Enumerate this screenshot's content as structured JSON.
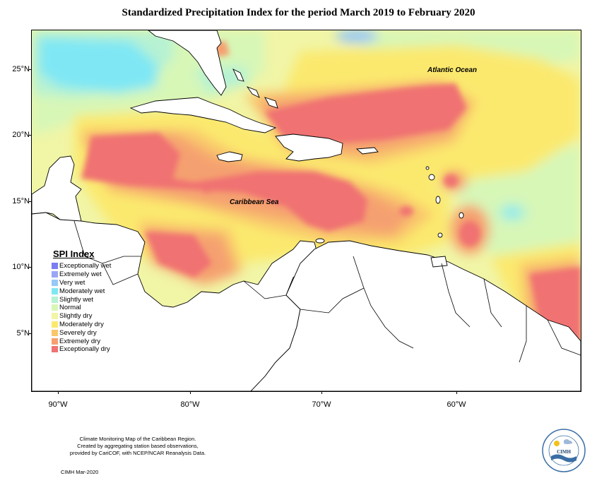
{
  "title": "Standardized Precipitation Index for the period March 2019 to February 2020",
  "map": {
    "lat_labels": [
      "25°N",
      "20°N",
      "15°N",
      "10°N",
      "5°N"
    ],
    "lon_labels": [
      "90°W",
      "80°W",
      "70°W",
      "60°W"
    ],
    "annotations": {
      "atlantic": "Atlantic Ocean",
      "caribbean": "Caribbean Sea"
    }
  },
  "legend": {
    "title": "SPI Index",
    "items": [
      {
        "label": "Exceptionally wet",
        "color": "#7b7df2"
      },
      {
        "label": "Extremely wet",
        "color": "#9aa6f5"
      },
      {
        "label": "Very wet",
        "color": "#97c8f7"
      },
      {
        "label": "Moderately wet",
        "color": "#7fe7f4"
      },
      {
        "label": "Slightly wet",
        "color": "#b6f2d3"
      },
      {
        "label": "Normal",
        "color": "#d7f7b7"
      },
      {
        "label": "Slightly dry",
        "color": "#f1f5a6"
      },
      {
        "label": "Moderately dry",
        "color": "#fbe96e"
      },
      {
        "label": "Severely dry",
        "color": "#f9c66c"
      },
      {
        "label": "Extremely dry",
        "color": "#f5a070"
      },
      {
        "label": "Exceptionally dry",
        "color": "#f07272"
      }
    ]
  },
  "footer": {
    "line1": "Climate Monitoring Map of the Caribbean Region.",
    "line2": "Created by aggregating station based observations,",
    "line3": "provided by CariCOF, with NCEP/NCAR Reanalysis Data.",
    "credit": "CIMH Mar-2020"
  },
  "logo": {
    "text": "CIMH",
    "ring_text_top": "Caribbean Institute for",
    "ring_text_bottom": "Meteorology and Hydrology"
  }
}
